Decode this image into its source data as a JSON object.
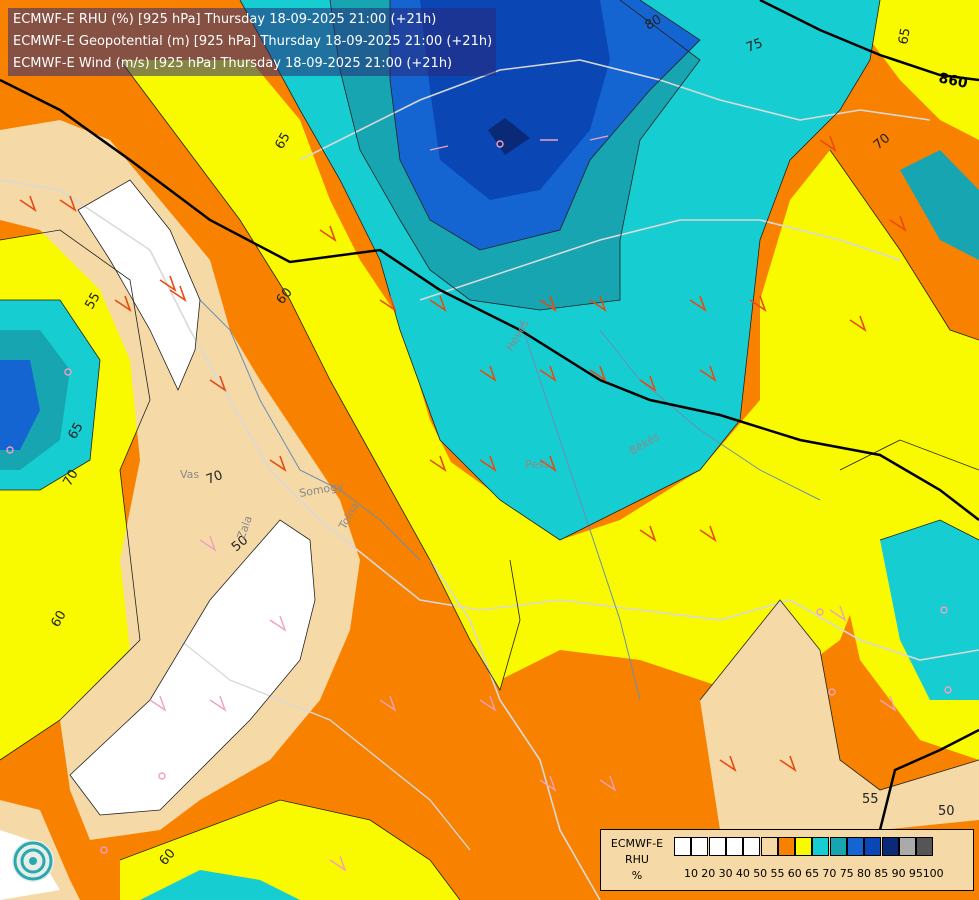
{
  "title": {
    "line1": "ECMWF-E RHU (%) [925 hPa] Thursday 18-09-2025 21:00 (+21h)",
    "line2": "ECMWF-E Geopotential (m) [925 hPa] Thursday 18-09-2025 21:00 (+21h)",
    "line3": "ECMWF-E Wind (m/s) [925 hPa] Thursday 18-09-2025 21:00 (+21h)"
  },
  "legend": {
    "model": "ECMWF-E",
    "variable": "RHU",
    "unit": "%",
    "ticks": [
      "10",
      "20",
      "30",
      "40",
      "50",
      "55",
      "60",
      "65",
      "70",
      "75",
      "80",
      "85",
      "90",
      "95",
      "100"
    ],
    "colors": [
      "#ffffff",
      "#ffffff",
      "#ffffff",
      "#ffffff",
      "#ffffff",
      "#f5d9a6",
      "#f98100",
      "#f9f900",
      "#16cdd1",
      "#16a5b1",
      "#1464d2",
      "#0a46b4",
      "#0a2a78",
      "#aaaaaa",
      "#555555"
    ]
  },
  "contour_labels": {
    "rhu": [
      "55",
      "60",
      "65",
      "70",
      "75",
      "80",
      "50",
      "65",
      "70",
      "55",
      "60",
      "50",
      "60",
      "65",
      "70"
    ],
    "geopotential": [
      "860"
    ]
  },
  "places": [
    "Vas",
    "Somogy",
    "Tolna",
    "Zala",
    "Pest",
    "Békés",
    "Heves"
  ],
  "colors": {
    "rhu_55": "#f5d9a6",
    "rhu_60": "#f98100",
    "rhu_65": "#f9f900",
    "rhu_70": "#16cdd1",
    "rhu_75": "#16a5b1",
    "rhu_80": "#1464d2",
    "rhu_85": "#0a46b4",
    "rhu_90": "#0a2a78",
    "rhu_low": "#ffffff",
    "wind_barb_orange": "#e84a10",
    "wind_barb_pink": "#f0a0c0"
  }
}
